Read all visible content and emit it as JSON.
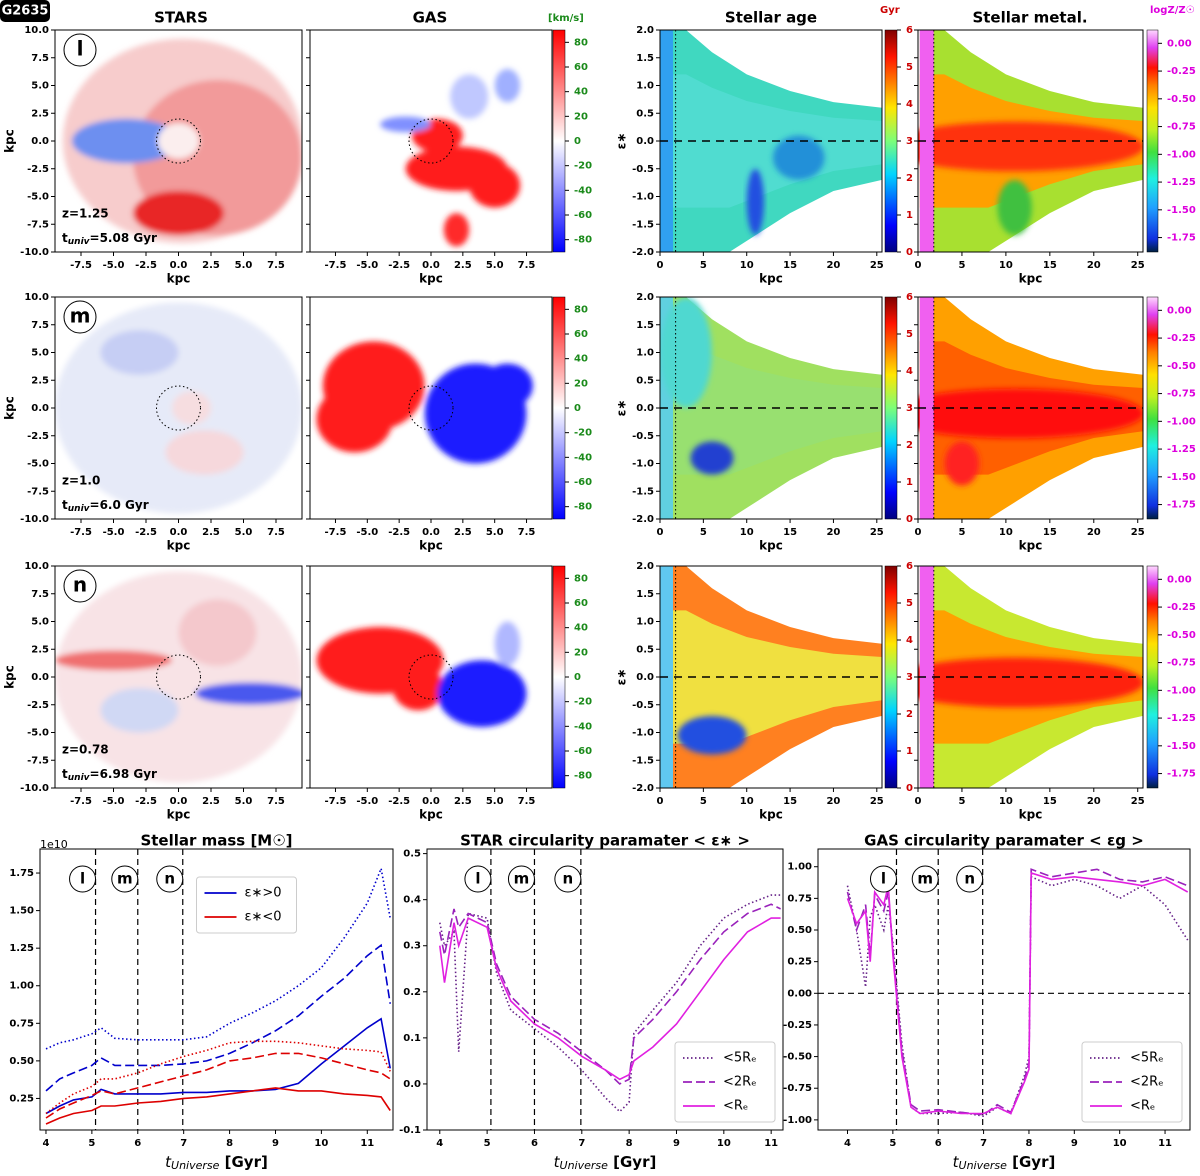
{
  "figure_label": "G2635",
  "column_titles": [
    "STARS",
    "GAS",
    "Stellar age",
    "Stellar metal."
  ],
  "map_axes": {
    "xlim": [
      -9.5,
      9.5
    ],
    "ylim": [
      -10,
      10
    ],
    "xticks": [
      -7.5,
      {
        "value": -5,
        "label": "-5.0"
      },
      -2.5,
      {
        "value": 0,
        "label": "0.0"
      },
      2.5,
      {
        "value": 5,
        "label": "5.0"
      },
      7.5
    ],
    "yticks": [
      {
        "value": -10,
        "label": "-10.0"
      },
      -7.5,
      {
        "value": -5,
        "label": "-5.0"
      },
      -2.5,
      {
        "value": 0,
        "label": "0.0"
      },
      2.5,
      {
        "value": 5,
        "label": "5.0"
      },
      7.5,
      {
        "value": 10,
        "label": "10.0"
      }
    ],
    "xlabel": "kpc",
    "ylabel": "kpc"
  },
  "velocity_colorbar": {
    "label": "[km/s]",
    "lim": [
      -90,
      90
    ],
    "ticks": [
      -80,
      -60,
      -40,
      -20,
      0,
      20,
      40,
      60,
      80
    ],
    "color": "#1a8a1a"
  },
  "phase_axes": {
    "xlim": [
      0,
      25.6
    ],
    "ylim": [
      -2,
      2
    ],
    "xticks": [
      0,
      5,
      10,
      15,
      20,
      25
    ],
    "yticks": [
      {
        "value": -2,
        "label": "-2.0"
      },
      -1.5,
      {
        "value": -1,
        "label": "-1.0"
      },
      -0.5,
      {
        "value": 0,
        "label": "0.0"
      },
      0.5,
      {
        "value": 1,
        "label": "1.0"
      },
      1.5,
      {
        "value": 2,
        "label": "2.0"
      }
    ],
    "xlabel": "kpc",
    "ylabel": "ε∗"
  },
  "age_colorbar": {
    "label": "Gyr",
    "lim": [
      0,
      6
    ],
    "ticks": [
      0,
      1,
      2,
      3,
      4,
      5,
      6
    ],
    "color": "#cc0000"
  },
  "metal_colorbar": {
    "label": "logZ/Z☉",
    "lim": [
      -1.88,
      0.12
    ],
    "color": "#dd00dd",
    "ticks": [
      {
        "value": 0,
        "label": "0.00"
      },
      -0.25,
      {
        "value": -0.5,
        "label": "-0.50"
      },
      -0.75,
      {
        "value": -1,
        "label": "-1.00"
      },
      -1.25,
      {
        "value": -1.5,
        "label": "-1.50"
      },
      -1.75
    ]
  },
  "rows": [
    {
      "label": "l",
      "redshift": "z=1.25",
      "time_symbol": "t",
      "time_subscript": "univ",
      "time": "=5.08 Gyr"
    },
    {
      "label": "m",
      "redshift": "z=1.0",
      "time_symbol": "t",
      "time_subscript": "univ",
      "time": "=6.0 Gyr"
    },
    {
      "label": "n",
      "redshift": "z=0.78",
      "time_symbol": "t",
      "time_subscript": "univ",
      "time": "=6.98 Gyr"
    }
  ],
  "chart_data": [
    {
      "type": "line",
      "title": "Stellar mass [M☉]",
      "scale_label": "1e10",
      "xlabel": {
        "symbol": "t",
        "subscript": "Universe",
        "text": " [Gyr]"
      },
      "xlim": [
        3.87,
        11.56
      ],
      "ylim": [
        0.04,
        1.91
      ],
      "xticks": [
        4,
        5,
        6,
        7,
        8,
        9,
        10,
        11
      ],
      "yticks": [
        0.25,
        {
          "value": 0.5,
          "label": "0.50"
        },
        0.75,
        {
          "value": 1,
          "label": "1.00"
        },
        1.25,
        {
          "value": 1.5,
          "label": "1.50"
        },
        1.75
      ],
      "vlines": [
        {
          "x": 5.08,
          "label": "l"
        },
        {
          "x": 6.0,
          "label": "m"
        },
        {
          "x": 6.98,
          "label": "n"
        }
      ],
      "legend": "upper center",
      "x": [
        4,
        4.3,
        4.6,
        5,
        5.2,
        5.5,
        6,
        6.5,
        7,
        7.5,
        8,
        8.5,
        9,
        9.5,
        10,
        10.5,
        11,
        11.3,
        11.5
      ],
      "series": [
        {
          "name": "ε∗>0",
          "color": "#0000cc",
          "linestyle": "solid",
          "values": [
            0.15,
            0.2,
            0.24,
            0.26,
            0.31,
            0.28,
            0.28,
            0.28,
            0.29,
            0.29,
            0.3,
            0.3,
            0.31,
            0.35,
            0.48,
            0.6,
            0.72,
            0.78,
            0.45
          ]
        },
        {
          "color": "#0000cc",
          "linestyle": "dashed",
          "values": [
            0.3,
            0.38,
            0.42,
            0.47,
            0.52,
            0.47,
            0.47,
            0.47,
            0.48,
            0.5,
            0.55,
            0.62,
            0.7,
            0.8,
            0.93,
            1.05,
            1.2,
            1.27,
            0.88
          ]
        },
        {
          "color": "#0000cc",
          "linestyle": "dotted",
          "values": [
            0.58,
            0.62,
            0.64,
            0.68,
            0.72,
            0.65,
            0.64,
            0.64,
            0.64,
            0.66,
            0.75,
            0.82,
            0.9,
            1.0,
            1.12,
            1.32,
            1.55,
            1.78,
            1.45
          ]
        },
        {
          "name": "ε∗<0",
          "color": "#dd0000",
          "linestyle": "solid",
          "values": [
            0.08,
            0.12,
            0.15,
            0.17,
            0.2,
            0.2,
            0.22,
            0.23,
            0.25,
            0.26,
            0.28,
            0.3,
            0.32,
            0.3,
            0.3,
            0.28,
            0.27,
            0.26,
            0.17
          ]
        },
        {
          "color": "#dd0000",
          "linestyle": "dashed",
          "values": [
            0.12,
            0.18,
            0.22,
            0.27,
            0.3,
            0.28,
            0.32,
            0.36,
            0.4,
            0.44,
            0.5,
            0.52,
            0.55,
            0.55,
            0.52,
            0.48,
            0.44,
            0.42,
            0.38
          ]
        },
        {
          "color": "#dd0000",
          "linestyle": "dotted",
          "values": [
            0.15,
            0.22,
            0.28,
            0.33,
            0.38,
            0.38,
            0.42,
            0.48,
            0.53,
            0.57,
            0.62,
            0.63,
            0.63,
            0.62,
            0.6,
            0.58,
            0.57,
            0.56,
            0.43
          ]
        }
      ]
    },
    {
      "type": "line",
      "title": "STAR circularity paramater < ε∗ >",
      "xlabel": {
        "symbol": "t",
        "subscript": "Universe",
        "text": " [Gyr]"
      },
      "xlim": [
        3.73,
        11.25
      ],
      "ylim": [
        -0.1,
        0.51
      ],
      "xticks": [
        4,
        5,
        6,
        7,
        8,
        9,
        10,
        11
      ],
      "yticks": [
        -0.1,
        {
          "value": 0,
          "label": "0.0"
        },
        0.1,
        0.2,
        0.3,
        0.4,
        0.5
      ],
      "vlines": [
        {
          "x": 5.08,
          "label": "l"
        },
        {
          "x": 6.0,
          "label": "m"
        },
        {
          "x": 6.98,
          "label": "n"
        }
      ],
      "legend": "lower right",
      "x": [
        4,
        4.1,
        4.3,
        4.4,
        4.6,
        5,
        5.2,
        5.5,
        6,
        6.5,
        7,
        7.5,
        7.8,
        8,
        8.1,
        8.5,
        9,
        9.5,
        10,
        10.5,
        11,
        11.2
      ],
      "series": [
        {
          "name": "<5Rₑ",
          "color": "#662288",
          "linestyle": "dotted",
          "values": [
            0.35,
            0.3,
            0.33,
            0.07,
            0.37,
            0.36,
            0.24,
            0.16,
            0.12,
            0.08,
            0.03,
            -0.03,
            -0.06,
            -0.04,
            0.11,
            0.16,
            0.22,
            0.3,
            0.36,
            0.39,
            0.41,
            0.41
          ]
        },
        {
          "name": "<2Rₑ",
          "color": "#9922bb",
          "linestyle": "dashed",
          "values": [
            0.33,
            0.28,
            0.38,
            0.34,
            0.37,
            0.35,
            0.26,
            0.19,
            0.14,
            0.11,
            0.07,
            0.03,
            0.0,
            0.01,
            0.1,
            0.14,
            0.2,
            0.27,
            0.33,
            0.37,
            0.39,
            0.38
          ]
        },
        {
          "name": "<Rₑ",
          "color": "#e020e0",
          "linestyle": "solid",
          "values": [
            0.3,
            0.22,
            0.35,
            0.3,
            0.36,
            0.34,
            0.25,
            0.18,
            0.13,
            0.1,
            0.06,
            0.03,
            0.01,
            0.02,
            0.05,
            0.08,
            0.13,
            0.2,
            0.27,
            0.33,
            0.36,
            0.36
          ]
        }
      ]
    },
    {
      "type": "line",
      "title": "GAS circularity paramater < εg >",
      "xlabel": {
        "symbol": "t",
        "subscript": "Universe",
        "text": " [Gyr]"
      },
      "xlim": [
        3.35,
        11.55
      ],
      "ylim": [
        -1.08,
        1.14
      ],
      "xticks": [
        4,
        5,
        6,
        7,
        8,
        9,
        10,
        11
      ],
      "yticks": [
        {
          "value": -1,
          "label": "-1.00"
        },
        -0.75,
        {
          "value": -0.5,
          "label": "-0.50"
        },
        -0.25,
        {
          "value": 0,
          "label": "0.00"
        },
        0.25,
        {
          "value": 0.5,
          "label": "0.50"
        },
        0.75,
        {
          "value": 1,
          "label": "1.00"
        }
      ],
      "hline": 0,
      "vlines": [
        {
          "x": 5.08,
          "label": "l"
        },
        {
          "x": 6.0,
          "label": "m"
        },
        {
          "x": 6.98,
          "label": "n"
        }
      ],
      "legend": "lower right",
      "x": [
        4,
        4.2,
        4.4,
        4.5,
        4.6,
        4.8,
        4.9,
        5,
        5.1,
        5.2,
        5.4,
        5.6,
        6,
        6.5,
        7,
        7.3,
        7.6,
        7.9,
        8,
        8.05,
        8.5,
        9,
        9.5,
        10,
        10.5,
        11,
        11.5
      ],
      "series": [
        {
          "name": "<5Rₑ",
          "color": "#662288",
          "linestyle": "dotted",
          "values": [
            0.85,
            0.5,
            0.05,
            0.6,
            0.7,
            0.5,
            0.7,
            0.4,
            0,
            -0.4,
            -0.9,
            -0.95,
            -0.95,
            -0.94,
            -0.97,
            -0.9,
            -0.95,
            -0.65,
            -0.5,
            0.92,
            0.85,
            0.9,
            0.85,
            0.75,
            0.85,
            0.7,
            0.42
          ]
        },
        {
          "name": "<2Rₑ",
          "color": "#9922bb",
          "linestyle": "dashed",
          "values": [
            0.8,
            0.5,
            0.7,
            0.3,
            0.78,
            0.65,
            0.8,
            0.35,
            -0.05,
            -0.45,
            -0.88,
            -0.93,
            -0.92,
            -0.94,
            -0.96,
            -0.88,
            -0.94,
            -0.68,
            -0.55,
            0.98,
            0.92,
            0.95,
            0.98,
            0.9,
            0.88,
            0.92,
            0.85
          ]
        },
        {
          "name": "<Rₑ",
          "color": "#e020e0",
          "linestyle": "solid",
          "values": [
            0.75,
            0.55,
            0.65,
            0.25,
            0.8,
            0.7,
            0.85,
            0.3,
            -0.1,
            -0.5,
            -0.9,
            -0.95,
            -0.93,
            -0.95,
            -0.95,
            -0.9,
            -0.95,
            -0.7,
            -0.6,
            0.95,
            0.9,
            0.92,
            0.9,
            0.88,
            0.85,
            0.9,
            0.8
          ]
        }
      ]
    }
  ]
}
